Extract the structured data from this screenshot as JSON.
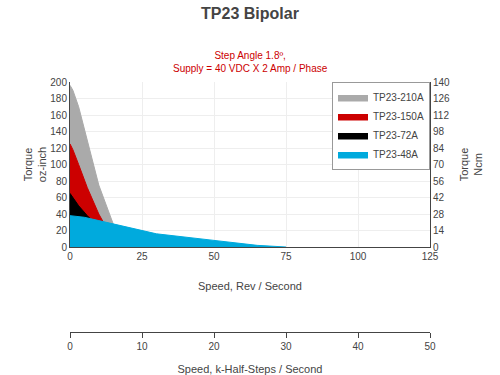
{
  "chart_data": {
    "type": "area",
    "title": "TP23 Bipolar",
    "subtitle": "Step Angle 1.8º,\nSupply = 40 VDC X 2 Amp / Phase",
    "xlabel": "Speed, Rev / Second",
    "x2label": "Speed, k-Half-Steps / Second",
    "ylabel": "Torque\noz-inch",
    "y2label": "Torque\nNcm",
    "xlim": [
      0,
      125
    ],
    "xticks": [
      0,
      25,
      50,
      75,
      100,
      125
    ],
    "x2lim": [
      0,
      50
    ],
    "x2ticks": [
      0,
      10,
      20,
      30,
      40,
      50
    ],
    "ylim": [
      0,
      200
    ],
    "yticks": [
      0,
      20,
      40,
      60,
      80,
      100,
      120,
      140,
      160,
      180,
      200
    ],
    "y2lim": [
      0,
      140
    ],
    "y2ticks": [
      0,
      14,
      28,
      42,
      56,
      70,
      84,
      98,
      112,
      126,
      140
    ],
    "grid": true,
    "legend": "upper right",
    "series": [
      {
        "name": "TP23-210A",
        "color": "#aaaaaa",
        "x": [
          0,
          1,
          3,
          6,
          10,
          15,
          18,
          22
        ],
        "values": [
          196,
          190,
          170,
          130,
          75,
          28,
          10,
          0
        ]
      },
      {
        "name": "TP23-150A",
        "color": "#cc0000",
        "x": [
          0,
          1,
          3,
          6,
          10,
          14,
          17,
          19
        ],
        "values": [
          125,
          118,
          100,
          72,
          40,
          15,
          4,
          0
        ]
      },
      {
        "name": "TP23-72A",
        "color": "#000000",
        "x": [
          0,
          1,
          3,
          6,
          10,
          14,
          18,
          22,
          27
        ],
        "values": [
          65,
          60,
          50,
          38,
          24,
          13,
          6,
          2,
          0
        ]
      },
      {
        "name": "TP23-48A",
        "color": "#00aadd",
        "x": [
          0,
          5,
          10,
          20,
          30,
          50,
          65,
          75
        ],
        "values": [
          38,
          36,
          32,
          24,
          16,
          8,
          2,
          0
        ]
      }
    ]
  }
}
